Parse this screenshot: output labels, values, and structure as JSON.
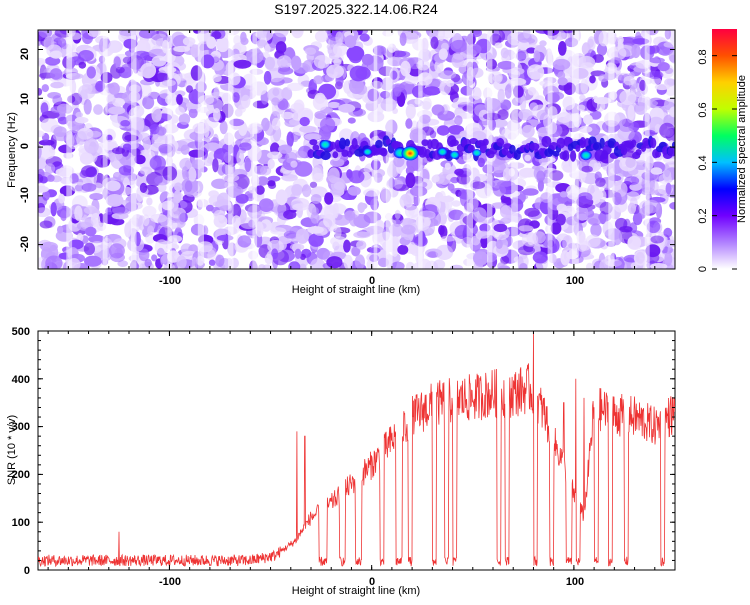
{
  "figure": {
    "title": "S197.2025.322.14.06.R24",
    "colors": {
      "line": "#ee3333",
      "axis": "#000000",
      "background": "#ffffff",
      "spectro_purple": "#7b2cf0",
      "spectro_light": "#e8d8ff"
    }
  },
  "chart_data": [
    {
      "type": "heatmap",
      "title": "S197.2025.322.14.06.R24",
      "xlabel": "Height of straight line (km)",
      "ylabel": "Frequency (Hz)",
      "xlim": [
        -165,
        150
      ],
      "ylim": [
        -25,
        24
      ],
      "x_ticks": [
        -100,
        0,
        100
      ],
      "y_ticks": [
        -20,
        -10,
        0,
        10,
        20
      ],
      "grid": false,
      "colorbar": {
        "label": "Normalized spectral amplitude",
        "range": [
          0.0,
          0.9
        ],
        "ticks": [
          0.0,
          0.2,
          0.4,
          0.6,
          0.8
        ],
        "stops": [
          "#ffffff",
          "#b080ff",
          "#7000ff",
          "#0000ff",
          "#00c0ff",
          "#00ff60",
          "#c0ff00",
          "#ffd000",
          "#ff5000",
          "#ff0040"
        ]
      },
      "band": {
        "frequency_hz": 0,
        "x_range": [
          -30,
          150
        ]
      },
      "peaks": [
        {
          "x": -23,
          "y": 0.5,
          "amplitude": 0.28
        },
        {
          "x": -2,
          "y": -1.0,
          "amplitude": 0.12
        },
        {
          "x": 14,
          "y": -1.2,
          "amplitude": 0.4
        },
        {
          "x": 19,
          "y": -1.3,
          "amplitude": 0.7
        },
        {
          "x": 35,
          "y": -1.0,
          "amplitude": 0.2
        },
        {
          "x": 41,
          "y": -1.6,
          "amplitude": 0.18
        },
        {
          "x": 52,
          "y": -1.2,
          "amplitude": 0.15
        },
        {
          "x": 106,
          "y": -1.7,
          "amplitude": 0.3
        }
      ]
    },
    {
      "type": "line",
      "title": "",
      "xlabel": "Height of straight line (km)",
      "ylabel": "SNR (10 * v/v)",
      "xlim": [
        -165,
        150
      ],
      "ylim": [
        0,
        500
      ],
      "x_ticks": [
        -100,
        0,
        100
      ],
      "y_ticks": [
        0,
        100,
        200,
        300,
        400,
        500
      ],
      "grid": false,
      "series": [
        {
          "name": "SNR",
          "envelope_x": [
            -165,
            -60,
            -48,
            -38,
            -30,
            -20,
            -10,
            0,
            10,
            20,
            30,
            40,
            50,
            60,
            70,
            78,
            85,
            90,
            95,
            100,
            105,
            110,
            120,
            130,
            140,
            150
          ],
          "envelope_y": [
            20,
            20,
            30,
            60,
            110,
            140,
            180,
            220,
            270,
            320,
            345,
            355,
            360,
            370,
            370,
            380,
            330,
            270,
            220,
            160,
            110,
            340,
            325,
            320,
            300,
            330
          ],
          "spikes": [
            {
              "x": -125,
              "y": 80
            },
            {
              "x": -37,
              "y": 290
            },
            {
              "x": -33,
              "y": 280
            },
            {
              "x": 80,
              "y": 500
            },
            {
              "x": 95,
              "y": 350
            },
            {
              "x": 101,
              "y": 400
            },
            {
              "x": 105,
              "y": 360
            }
          ],
          "dropouts": [
            [
              -26,
              -22
            ],
            [
              -16,
              -13
            ],
            [
              -8,
              -5
            ],
            [
              4,
              6
            ],
            [
              12,
              15
            ],
            [
              18,
              20
            ],
            [
              30,
              32
            ],
            [
              36,
              38
            ],
            [
              40,
              42
            ],
            [
              62,
              64
            ],
            [
              66,
              68
            ],
            [
              80,
              82
            ],
            [
              88,
              90
            ],
            [
              96,
              99
            ],
            [
              101,
              103
            ],
            [
              110,
              112
            ],
            [
              117,
              119
            ],
            [
              125,
              127
            ],
            [
              143,
              145
            ]
          ]
        }
      ]
    }
  ]
}
